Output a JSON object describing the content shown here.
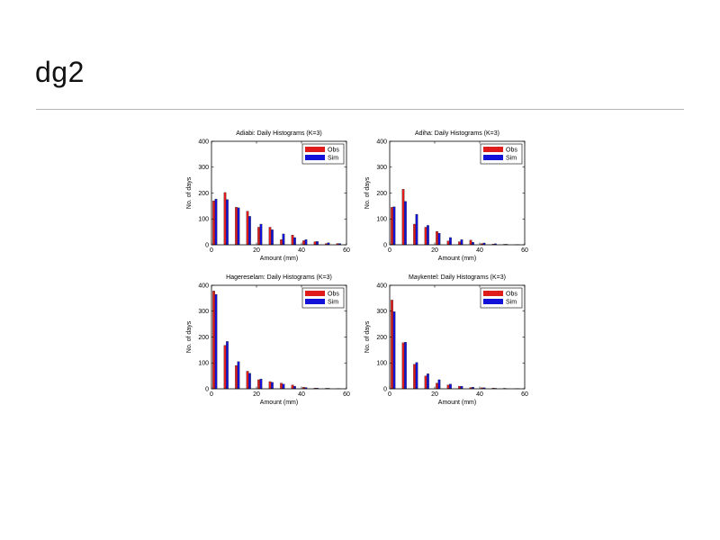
{
  "slide": {
    "title": "dg2"
  },
  "colors": {
    "obs": "#e01b1b",
    "sim": "#1212d8",
    "rule": "#b5b5b5"
  },
  "chart_data": [
    {
      "type": "bar",
      "title": "Adiabi: Daily Histograms (K=3)",
      "xlabel": "Amount (mm)",
      "ylabel": "No. of days",
      "xlim": [
        0,
        60
      ],
      "ylim": [
        0,
        400
      ],
      "xticks": [
        0,
        20,
        40,
        60
      ],
      "yticks": [
        0,
        100,
        200,
        300,
        400
      ],
      "legend_position": "top-right",
      "x": [
        1.5,
        6.5,
        11.5,
        16.5,
        21.5,
        26.5,
        31.5,
        36.5,
        41.5,
        46.5,
        51.5,
        56.5
      ],
      "series": [
        {
          "name": "Obs",
          "values": [
            170,
            202,
            145,
            130,
            68,
            68,
            20,
            38,
            16,
            12,
            5,
            5
          ]
        },
        {
          "name": "Sim",
          "values": [
            177,
            175,
            143,
            110,
            80,
            58,
            42,
            28,
            20,
            13,
            8,
            5
          ]
        }
      ]
    },
    {
      "type": "bar",
      "title": "Adiha: Daily Histograms (K=3)",
      "xlabel": "Amount (mm)",
      "ylabel": "No. of days",
      "xlim": [
        0,
        60
      ],
      "ylim": [
        0,
        400
      ],
      "xticks": [
        0,
        20,
        40,
        60
      ],
      "yticks": [
        0,
        100,
        200,
        300,
        400
      ],
      "legend_position": "top-right",
      "x": [
        1.5,
        6.5,
        11.5,
        16.5,
        21.5,
        26.5,
        31.5,
        36.5,
        41.5,
        46.5,
        51.5,
        56.5
      ],
      "series": [
        {
          "name": "Obs",
          "values": [
            145,
            215,
            80,
            68,
            52,
            15,
            12,
            18,
            5,
            3,
            2,
            1
          ]
        },
        {
          "name": "Sim",
          "values": [
            147,
            168,
            118,
            75,
            45,
            28,
            20,
            10,
            7,
            4,
            2,
            1
          ]
        }
      ]
    },
    {
      "type": "bar",
      "title": "Hagereselam: Daily Histograms (K=3)",
      "xlabel": "Amount (mm)",
      "ylabel": "No. of days",
      "xlim": [
        0,
        60
      ],
      "ylim": [
        0,
        400
      ],
      "xticks": [
        0,
        20,
        40,
        60
      ],
      "yticks": [
        0,
        100,
        200,
        300,
        400
      ],
      "legend_position": "top-right",
      "x": [
        1.5,
        6.5,
        11.5,
        16.5,
        21.5,
        26.5,
        31.5,
        36.5,
        41.5,
        46.5,
        51.5,
        56.5
      ],
      "series": [
        {
          "name": "Obs",
          "values": [
            378,
            168,
            90,
            68,
            35,
            28,
            22,
            15,
            6,
            3,
            2,
            1
          ]
        },
        {
          "name": "Sim",
          "values": [
            365,
            183,
            105,
            60,
            38,
            25,
            18,
            10,
            5,
            3,
            2,
            1
          ]
        }
      ]
    },
    {
      "type": "bar",
      "title": "Maykentel: Daily Histograms (K=3)",
      "xlabel": "Amount (mm)",
      "ylabel": "No. of days",
      "xlim": [
        0,
        60
      ],
      "ylim": [
        0,
        400
      ],
      "xticks": [
        0,
        20,
        40,
        60
      ],
      "yticks": [
        0,
        100,
        200,
        300,
        400
      ],
      "legend_position": "top-right",
      "x": [
        1.5,
        6.5,
        11.5,
        16.5,
        21.5,
        26.5,
        31.5,
        36.5,
        41.5,
        46.5,
        51.5,
        56.5
      ],
      "series": [
        {
          "name": "Obs",
          "values": [
            343,
            178,
            95,
            50,
            22,
            15,
            10,
            5,
            4,
            3,
            2,
            1
          ]
        },
        {
          "name": "Sim",
          "values": [
            298,
            180,
            102,
            58,
            35,
            18,
            10,
            6,
            4,
            2,
            1,
            1
          ]
        }
      ]
    }
  ]
}
